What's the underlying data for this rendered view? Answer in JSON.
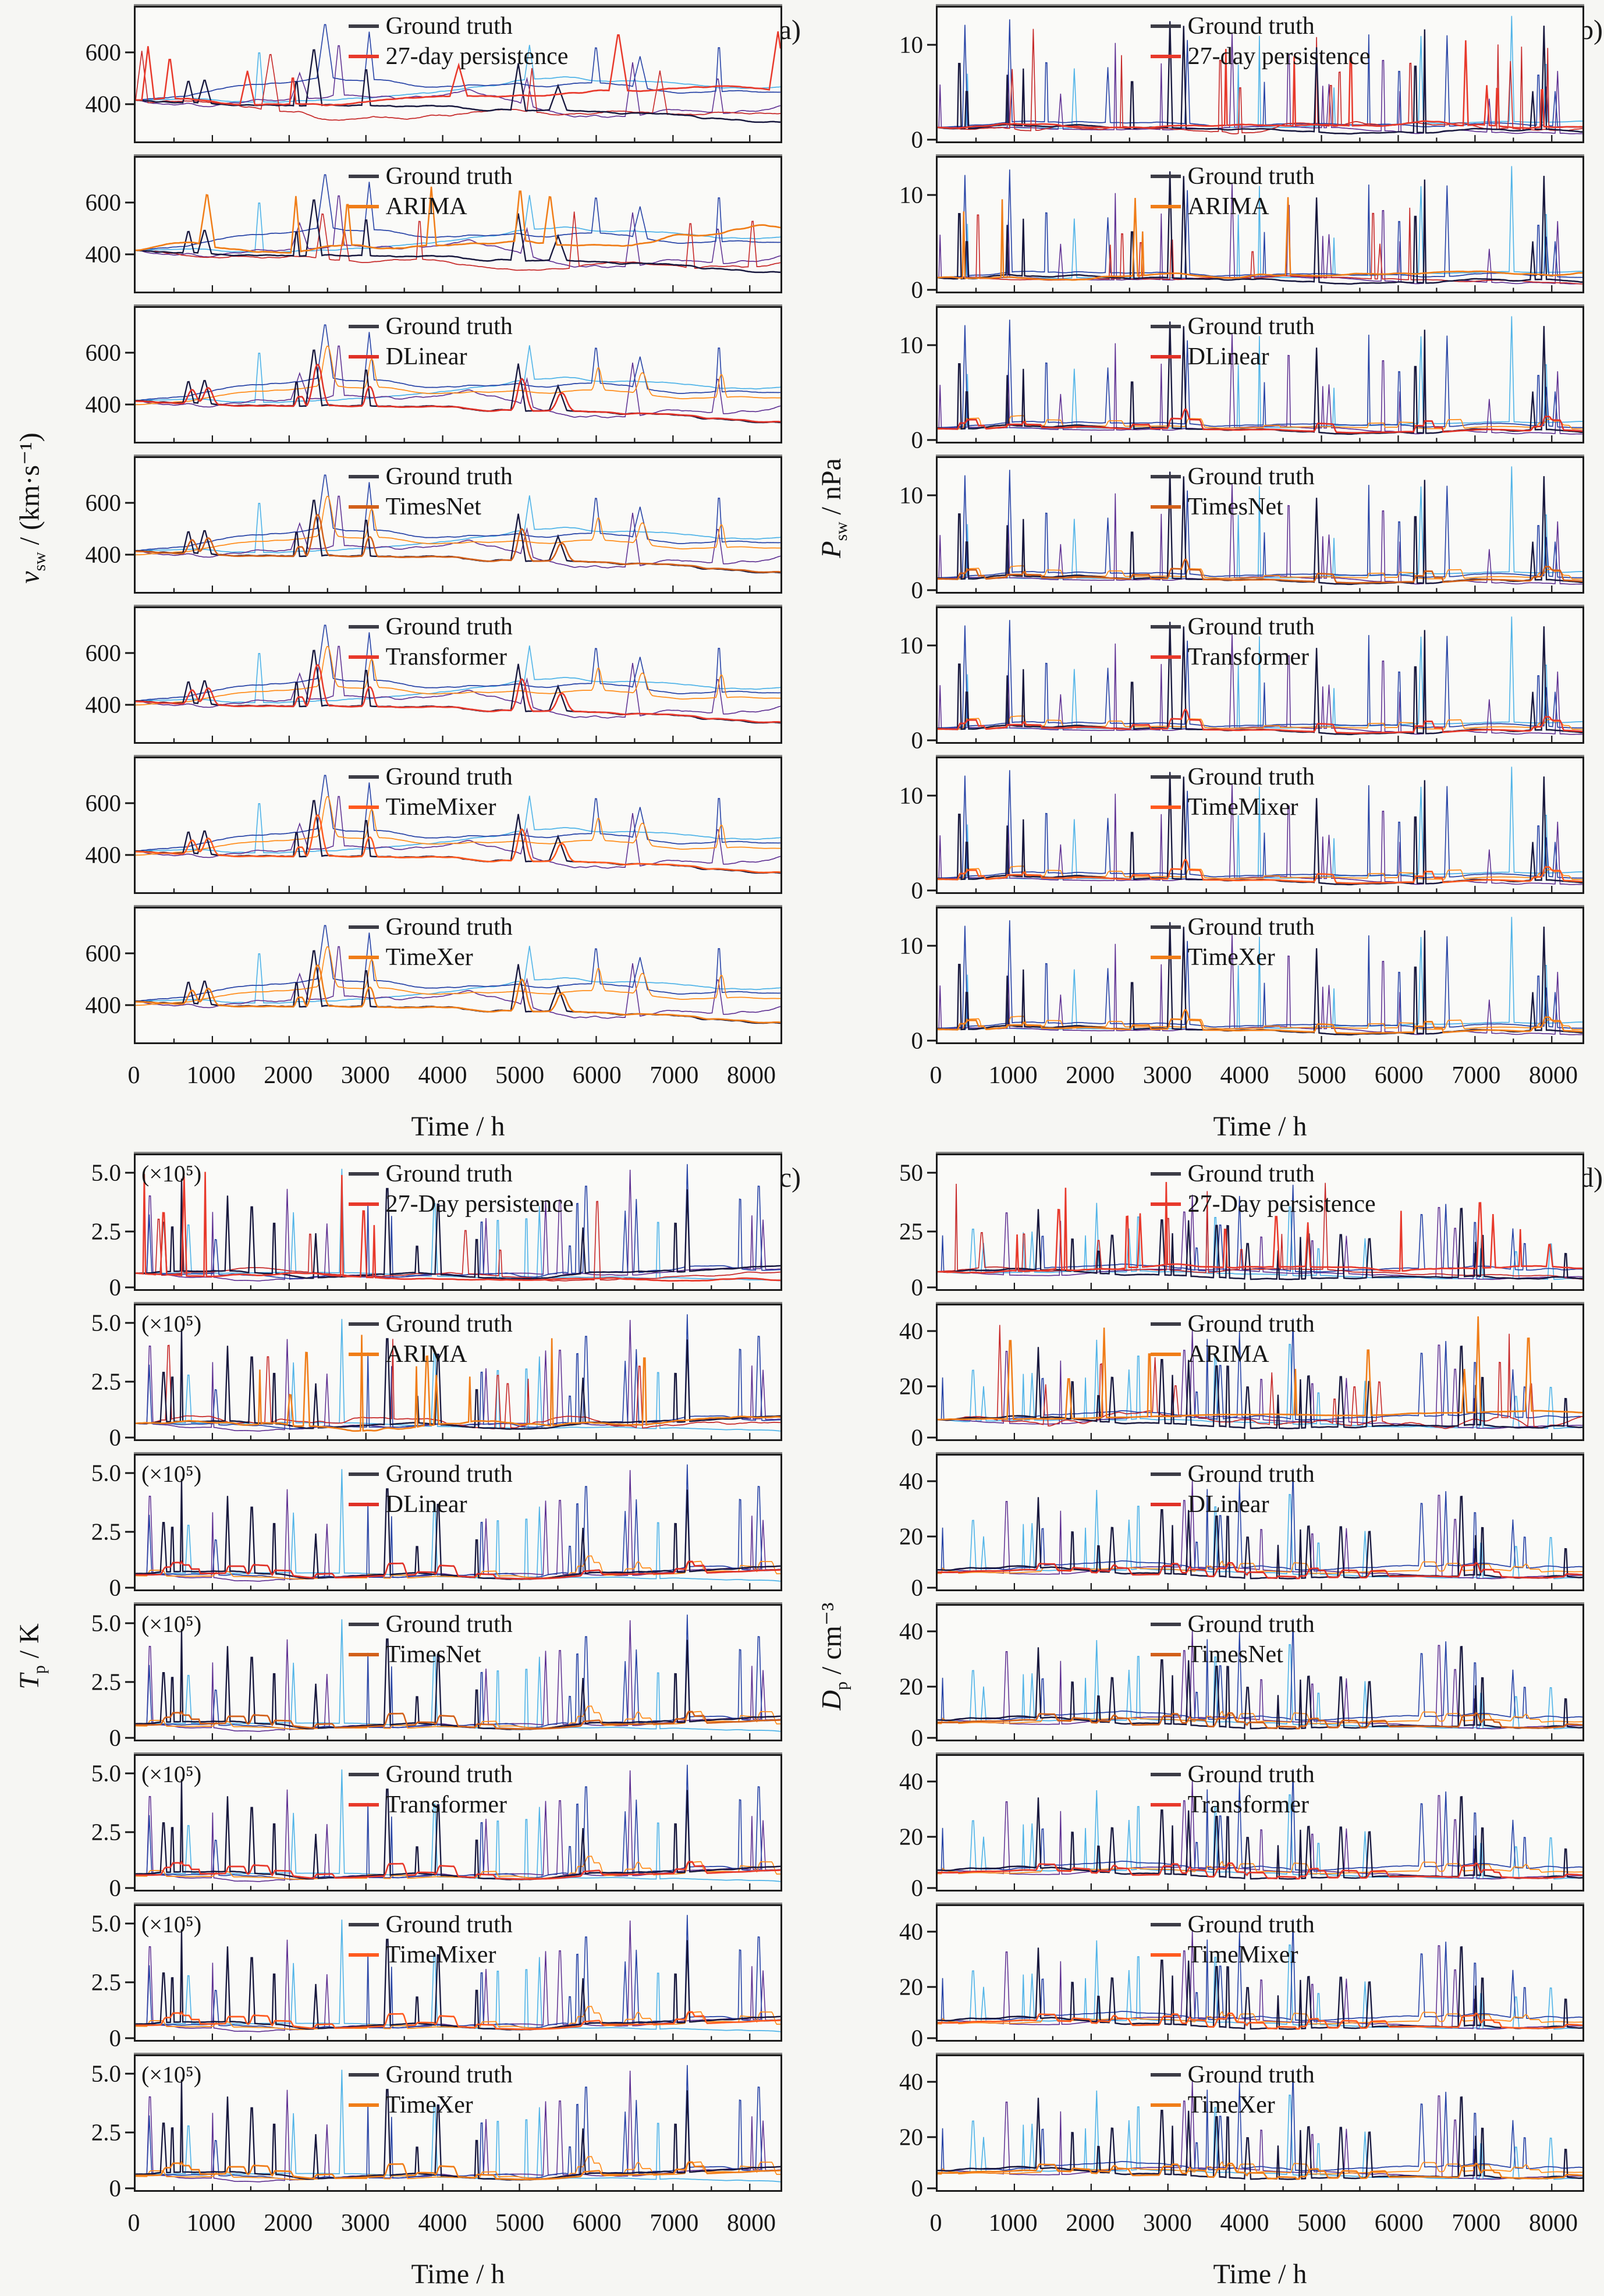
{
  "page": {
    "background": "#f6f6f3",
    "spine_color": "#1b1b1b",
    "ground_truth_color": "#17173d",
    "ground_truth_legend_swatch": "#3c3c46"
  },
  "chart_data": [
    {
      "id": "a",
      "panel_label": "(a)",
      "type": "line",
      "ylabel": {
        "var": "v",
        "sub": "sw",
        "unit": " / (km·s⁻¹)"
      },
      "xlabel": "Time / h",
      "xlim": [
        0,
        8400
      ],
      "xtick_labels": [
        "0",
        "1000",
        "2000",
        "3000",
        "4000",
        "5000",
        "6000",
        "7000",
        "8000"
      ],
      "xtick_values": [
        0,
        1000,
        2000,
        3000,
        4000,
        5000,
        6000,
        7000,
        8000
      ],
      "ylim": [
        250,
        780
      ],
      "yticks": [
        {
          "value": 400,
          "label": "400"
        },
        {
          "value": 600,
          "label": "600"
        }
      ],
      "legend_position": "top-center",
      "grid": false,
      "annotation": "",
      "gt_seed": 11,
      "cool_palette": [
        "#4fb3e8",
        "#5d2e91",
        "#2743a6"
      ],
      "warm_palette": [
        "#ff8c1a",
        "#c62828"
      ],
      "gen": {
        "profile": "wave",
        "n": 520,
        "base": 0.3,
        "wamp": 0.15,
        "jamp": 0.05,
        "sprob": 0.01,
        "smin": 0.18,
        "smax": 0.48,
        "wmin": 6,
        "wmax": 16
      },
      "subplots": [
        {
          "legend": [
            "Ground truth",
            "27-day persistence"
          ],
          "model": "27-day persistence",
          "color": "#e8392b",
          "pred_mode": "mimic"
        },
        {
          "legend": [
            "Ground truth",
            "ARIMA"
          ],
          "model": "ARIMA",
          "color": "#f07d18",
          "pred_mode": "mimic"
        },
        {
          "legend": [
            "Ground truth",
            "DLinear"
          ],
          "model": "DLinear",
          "color": "#e03127",
          "pred_mode": "smooth"
        },
        {
          "legend": [
            "Ground truth",
            "TimesNet"
          ],
          "model": "TimesNet",
          "color": "#d2601a",
          "pred_mode": "smooth"
        },
        {
          "legend": [
            "Ground truth",
            "Transformer"
          ],
          "model": "Transformer",
          "color": "#e8392b",
          "pred_mode": "smooth"
        },
        {
          "legend": [
            "Ground truth",
            "TimeMixer"
          ],
          "model": "TimeMixer",
          "color": "#ff5a1f",
          "pred_mode": "smooth"
        },
        {
          "legend": [
            "Ground truth",
            "TimeXer"
          ],
          "model": "TimeXer",
          "color": "#f07d18",
          "pred_mode": "smooth"
        }
      ]
    },
    {
      "id": "b",
      "panel_label": "(b)",
      "type": "line",
      "ylabel": {
        "var": "P",
        "sub": "sw",
        "unit": " / nPa"
      },
      "xlabel": "Time / h",
      "xlim": [
        0,
        8400
      ],
      "xtick_labels": [
        "0",
        "1000",
        "2000",
        "3000",
        "4000",
        "5000",
        "6000",
        "7000",
        "8000"
      ],
      "xtick_values": [
        0,
        1000,
        2000,
        3000,
        4000,
        5000,
        6000,
        7000,
        8000
      ],
      "ylim": [
        0,
        14
      ],
      "yticks": [
        {
          "value": 0,
          "label": "0"
        },
        {
          "value": 10,
          "label": "10"
        }
      ],
      "legend_position": "top-center",
      "grid": false,
      "annotation": "",
      "gt_seed": 23,
      "cool_palette": [
        "#4fb3e8",
        "#5d2e91",
        "#2743a6"
      ],
      "warm_palette": [
        "#ff8c1a",
        "#c62828"
      ],
      "gen": {
        "profile": "spiky",
        "n": 520,
        "base": 0.085,
        "wamp": 0.05,
        "jamp": 0.0,
        "sprob": 0.03,
        "smin": 0.25,
        "smax": 0.85,
        "wmin": 2,
        "wmax": 5
      },
      "subplots": [
        {
          "legend": [
            "Ground truth",
            "27-day persistence"
          ],
          "model": "27-day persistence",
          "color": "#e8392b",
          "pred_mode": "mimic"
        },
        {
          "legend": [
            "Ground truth",
            "ARIMA"
          ],
          "model": "ARIMA",
          "color": "#f07d18",
          "pred_mode": "mimic"
        },
        {
          "legend": [
            "Ground truth",
            "DLinear"
          ],
          "model": "DLinear",
          "color": "#e03127",
          "pred_mode": "smooth"
        },
        {
          "legend": [
            "Ground truth",
            "TimesNet"
          ],
          "model": "TimesNet",
          "color": "#d2601a",
          "pred_mode": "smooth"
        },
        {
          "legend": [
            "Ground truth",
            "Transformer"
          ],
          "model": "Transformer",
          "color": "#e8392b",
          "pred_mode": "smooth"
        },
        {
          "legend": [
            "Ground truth",
            "TimeMixer"
          ],
          "model": "TimeMixer",
          "color": "#ff5a1f",
          "pred_mode": "smooth"
        },
        {
          "legend": [
            "Ground truth",
            "TimeXer"
          ],
          "model": "TimeXer",
          "color": "#f07d18",
          "pred_mode": "smooth"
        }
      ]
    },
    {
      "id": "c",
      "panel_label": "(c)",
      "type": "line",
      "ylabel": {
        "var": "T",
        "sub": "p",
        "unit": " / K"
      },
      "xlabel": "Time / h",
      "xlim": [
        0,
        8400
      ],
      "xtick_labels": [
        "0",
        "1000",
        "2000",
        "3000",
        "4000",
        "5000",
        "6000",
        "7000",
        "8000"
      ],
      "xtick_values": [
        0,
        1000,
        2000,
        3000,
        4000,
        5000,
        6000,
        7000,
        8000
      ],
      "ylim": [
        0,
        5.8
      ],
      "yticks": [
        {
          "value": 0,
          "label": "0"
        },
        {
          "value": 2.5,
          "label": "2.5"
        },
        {
          "value": 5.0,
          "label": "5.0"
        }
      ],
      "legend_position": "top-center",
      "grid": false,
      "annotation": "(×10⁵)",
      "gt_seed": 37,
      "cool_palette": [
        "#4fb3e8",
        "#5d2e91",
        "#2743a6"
      ],
      "warm_palette": [
        "#ff8c1a",
        "#c62828"
      ],
      "gen": {
        "profile": "spiky",
        "n": 520,
        "base": 0.1,
        "wamp": 0.06,
        "jamp": 0.0,
        "sprob": 0.026,
        "smin": 0.3,
        "smax": 0.85,
        "wmin": 2,
        "wmax": 6
      },
      "subplots": [
        {
          "legend": [
            "Ground truth",
            "27-Day persistence"
          ],
          "model": "27-Day persistence",
          "color": "#e8392b",
          "pred_mode": "mimic"
        },
        {
          "legend": [
            "Ground truth",
            "ARIMA"
          ],
          "model": "ARIMA",
          "color": "#f07d18",
          "pred_mode": "mimic"
        },
        {
          "legend": [
            "Ground truth",
            "DLinear"
          ],
          "model": "DLinear",
          "color": "#e03127",
          "pred_mode": "smooth"
        },
        {
          "legend": [
            "Ground truth",
            "TimesNet"
          ],
          "model": "TimesNet",
          "color": "#d2601a",
          "pred_mode": "smooth"
        },
        {
          "legend": [
            "Ground truth",
            "Transformer"
          ],
          "model": "Transformer",
          "color": "#e8392b",
          "pred_mode": "smooth"
        },
        {
          "legend": [
            "Ground truth",
            "TimeMixer"
          ],
          "model": "TimeMixer",
          "color": "#ff5a1f",
          "pred_mode": "smooth"
        },
        {
          "legend": [
            "Ground truth",
            "TimeXer"
          ],
          "model": "TimeXer",
          "color": "#f07d18",
          "pred_mode": "smooth"
        }
      ]
    },
    {
      "id": "d",
      "panel_label": "(d)",
      "type": "line",
      "ylabel": {
        "var": "D",
        "sub": "p",
        "unit": " / cm⁻³"
      },
      "xlabel": "Time / h",
      "xlim": [
        0,
        8400
      ],
      "xtick_labels": [
        "0",
        "1000",
        "2000",
        "3000",
        "4000",
        "5000",
        "6000",
        "7000",
        "8000"
      ],
      "xtick_values": [
        0,
        1000,
        2000,
        3000,
        4000,
        5000,
        6000,
        7000,
        8000
      ],
      "ylim": [
        0,
        50
      ],
      "yticks": [
        {
          "value": 0,
          "label": "0"
        },
        {
          "value": 20,
          "label": "20"
        },
        {
          "value": 40,
          "label": "40"
        }
      ],
      "legend_position": "top-center",
      "grid": false,
      "annotation": "",
      "gt_seed": 53,
      "cool_palette": [
        "#4fb3e8",
        "#5d2e91",
        "#2743a6"
      ],
      "warm_palette": [
        "#ff8c1a",
        "#c62828"
      ],
      "gen": {
        "profile": "spiky",
        "n": 520,
        "base": 0.13,
        "wamp": 0.07,
        "jamp": 0.0,
        "sprob": 0.034,
        "smin": 0.25,
        "smax": 0.8,
        "wmin": 2,
        "wmax": 6
      },
      "subplots": [
        {
          "legend": [
            "Ground truth",
            "27-Day persistence"
          ],
          "model": "27-Day persistence",
          "color": "#e8392b",
          "pred_mode": "mimic",
          "ylim": [
            0,
            58
          ],
          "yticks": [
            {
              "value": 0,
              "label": "0"
            },
            {
              "value": 25,
              "label": "25"
            },
            {
              "value": 50,
              "label": "50"
            }
          ]
        },
        {
          "legend": [
            "Ground truth",
            "ARIMA"
          ],
          "model": "ARIMA",
          "color": "#f07d18",
          "pred_mode": "mimic"
        },
        {
          "legend": [
            "Ground truth",
            "DLinear"
          ],
          "model": "DLinear",
          "color": "#e03127",
          "pred_mode": "smooth"
        },
        {
          "legend": [
            "Ground truth",
            "TimesNet"
          ],
          "model": "TimesNet",
          "color": "#d2601a",
          "pred_mode": "smooth"
        },
        {
          "legend": [
            "Ground truth",
            "Transformer"
          ],
          "model": "Transformer",
          "color": "#e8392b",
          "pred_mode": "smooth"
        },
        {
          "legend": [
            "Ground truth",
            "TimeMixer"
          ],
          "model": "TimeMixer",
          "color": "#ff5a1f",
          "pred_mode": "smooth"
        },
        {
          "legend": [
            "Ground truth",
            "TimeXer"
          ],
          "model": "TimeXer",
          "color": "#f07d18",
          "pred_mode": "smooth"
        }
      ]
    }
  ]
}
